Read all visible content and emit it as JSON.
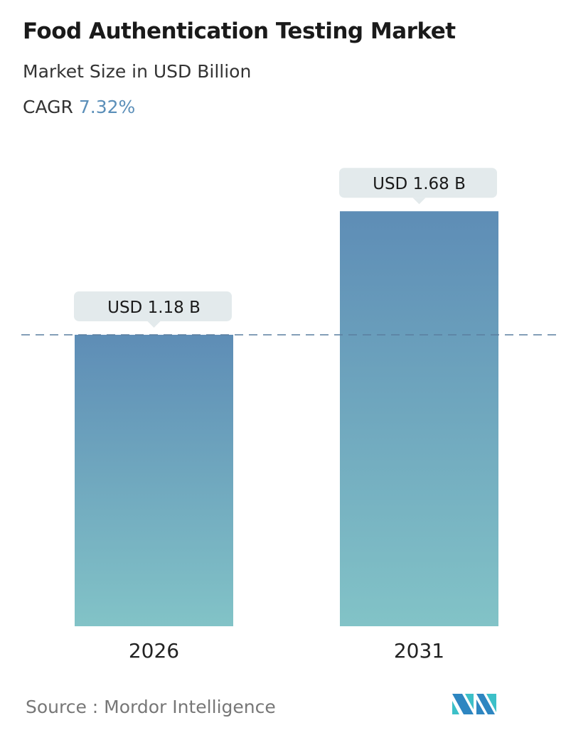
{
  "header": {
    "title": "Food Authentication Testing Market",
    "subtitle": "Market Size in USD Billion",
    "cagr_label": "CAGR",
    "cagr_value": "7.32%"
  },
  "chart_data": {
    "type": "bar",
    "categories": [
      "2026",
      "2031"
    ],
    "values": [
      1.18,
      1.68
    ],
    "data_labels": [
      "USD 1.18 B",
      "USD 1.68 B"
    ],
    "unit": "USD Billion",
    "reference_line": 1.18,
    "grid": false,
    "colors": {
      "bar_top": "#5e8db6",
      "bar_bottom": "#82c3c7",
      "label_bg": "#e3eaec",
      "ref_line": "#5a7f9f",
      "cagr": "#5b8fb9"
    }
  },
  "footer": {
    "source": "Source :  Mordor Intelligence",
    "logo_text": "Mordor Intelligence"
  }
}
